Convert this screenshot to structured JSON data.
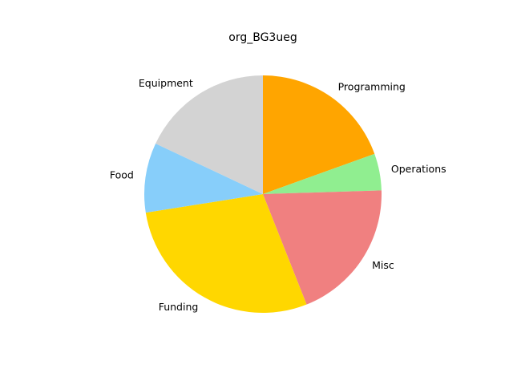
{
  "chart_data": {
    "type": "pie",
    "title": "org_BG3ueg",
    "start_angle_deg": 90,
    "direction": "clockwise",
    "slices": [
      {
        "label": "Programming",
        "value": 19.5,
        "color": "#FFA500"
      },
      {
        "label": "Operations",
        "value": 5,
        "color": "#90EE90"
      },
      {
        "label": "Misc",
        "value": 19.5,
        "color": "#F08080"
      },
      {
        "label": "Funding",
        "value": 28.5,
        "color": "#FFD700"
      },
      {
        "label": "Food",
        "value": 9.5,
        "color": "#87CEFA"
      },
      {
        "label": "Equipment",
        "value": 18,
        "color": "#D3D3D3"
      }
    ]
  }
}
